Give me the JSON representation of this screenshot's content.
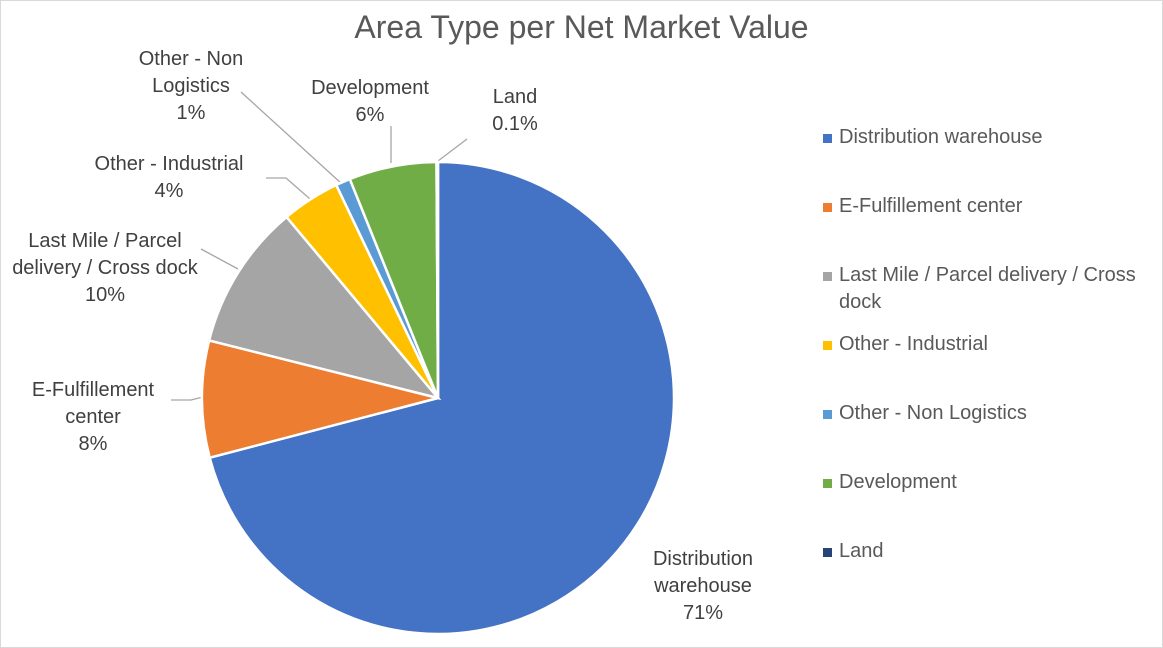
{
  "chart_data": {
    "type": "pie",
    "title": "Area Type per Net Market Value",
    "categories": [
      "Distribution warehouse",
      "E-Fulfillement center",
      "Last Mile / Parcel delivery / Cross dock",
      "Other - Industrial",
      "Other - Non Logistics",
      "Development",
      "Land"
    ],
    "values": [
      71,
      8,
      10,
      4,
      1,
      6,
      0.1
    ],
    "value_labels": [
      "71%",
      "8%",
      "10%",
      "4%",
      "1%",
      "6%",
      "0.1%"
    ],
    "colors": [
      "#4472c4",
      "#ed7d31",
      "#a5a5a5",
      "#ffc000",
      "#5b9bd5",
      "#70ad47",
      "#264478"
    ],
    "legend": "right"
  }
}
